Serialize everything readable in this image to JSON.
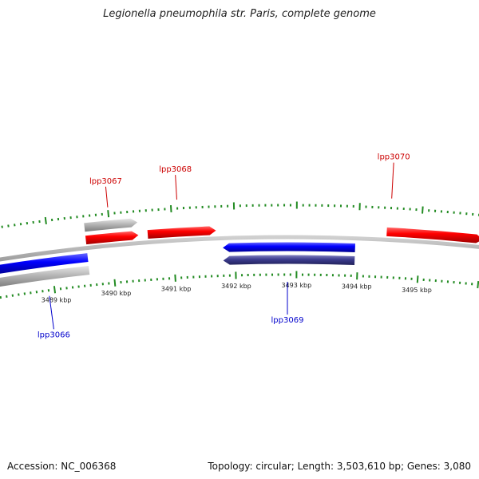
{
  "title": "Legionella pneumophila str. Paris, complete genome",
  "footer": {
    "accession": "Accession: NC_006368",
    "summary": "Topology: circular; Length: 3,503,610 bp; Genes: 3,080"
  },
  "colors": {
    "forward": "#ff0000",
    "reverse": "#0000ff",
    "reverse_dark": "#3a3a8c",
    "pseudo": "#b4b4b4",
    "tick": "#228b22",
    "backbone": "#8c8c8c",
    "label_forward": "#cc0000",
    "label_reverse": "#0000cc"
  },
  "axis": {
    "unit_label": "kbp",
    "labels": [
      "3489 kbp",
      "3490 kbp",
      "3491 kbp",
      "3492 kbp",
      "3493 kbp",
      "3494 kbp",
      "3495 kbp"
    ],
    "values_kbp": [
      3489,
      3490,
      3491,
      3492,
      3493,
      3494,
      3495
    ]
  },
  "genes": [
    {
      "name": "lpp3066",
      "strand": "reverse",
      "start_kbp": 3487.9,
      "end_kbp": 3489.6,
      "color": "reverse"
    },
    {
      "name": "",
      "strand": "reverse",
      "start_kbp": 3487.9,
      "end_kbp": 3489.6,
      "color": "pseudo"
    },
    {
      "name": "",
      "strand": "forward",
      "start_kbp": 3489.6,
      "end_kbp": 3490.45,
      "color": "pseudo"
    },
    {
      "name": "lpp3067",
      "strand": "forward",
      "start_kbp": 3489.6,
      "end_kbp": 3490.45,
      "color": "forward"
    },
    {
      "name": "lpp3068",
      "strand": "forward",
      "start_kbp": 3490.6,
      "end_kbp": 3491.7,
      "color": "forward"
    },
    {
      "name": "lpp3069",
      "strand": "reverse",
      "start_kbp": 3491.8,
      "end_kbp": 3493.95,
      "color": "reverse"
    },
    {
      "name": "",
      "strand": "reverse",
      "start_kbp": 3491.8,
      "end_kbp": 3493.95,
      "color": "reverse_dark"
    },
    {
      "name": "lpp3070",
      "strand": "forward",
      "start_kbp": 3494.45,
      "end_kbp": 3496.0,
      "color": "forward"
    }
  ],
  "gene_labels": {
    "lpp3066": "lpp3066",
    "lpp3067": "lpp3067",
    "lpp3068": "lpp3068",
    "lpp3069": "lpp3069",
    "lpp3070": "lpp3070"
  }
}
